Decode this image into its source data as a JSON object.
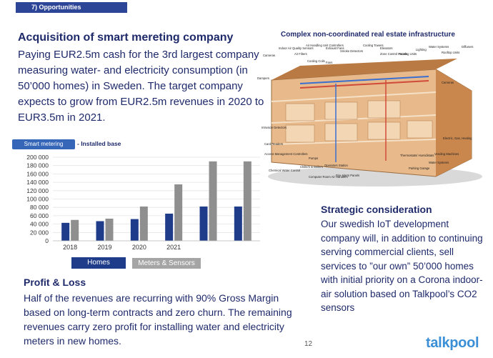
{
  "section": {
    "tab_label": "7) Opportunities"
  },
  "acquisition": {
    "title": "Acquisition of smart mereting company",
    "body": "Paying EUR2.5m cash for the 3rd largest company measuring water- and electricity consumption (in 50’000 homes) in Sweden. The target company expects to grow from EUR2.5m revenues in 2020 to EUR3.5m in 2021."
  },
  "diagram": {
    "title": "Complex non-coordinated real estate infrastructure",
    "labels": {
      "cameras": "Cameras",
      "indoor_air": "Indoor Air Quality Sensors",
      "air_filters": "Air Filters",
      "air_handling": "Air Handling Unit Controllers",
      "exhaust_fans": "Exhaust Fans",
      "smoke": "Smoke Detectors",
      "cooling_towers": "Cooling Towers",
      "elevators": "Elevators",
      "zone_panels": "Zone Control Panels",
      "lighting": "Lighting",
      "heating_units": "Heating Units",
      "water_systems": "Water Systems",
      "rooftop_units": "Rooftop Units",
      "diffusers": "Diffusers",
      "cooling_coils": "Cooling Coils",
      "fans": "Fans",
      "dampers": "Dampers",
      "intrusion": "Intrusion Detectors",
      "card_readers": "Card Readers",
      "access_mgmt": "Access Management Controllers",
      "chemical_water": "Chemical Water Control",
      "pumps": "Pumps",
      "chillers": "Chillers & Boilers",
      "operators": "Operators Station",
      "computer_room": "Computer Room Air Handlers",
      "fire_alarm": "Fire Alarm Panels",
      "thermostats": "Thermostats/ Humidistats",
      "parking": "Parking Garage",
      "vending": "Vending Machines",
      "electric_gas": "Electric, Gas, Heating",
      "water_systems_2": "Water Systems"
    }
  },
  "chart_header": {
    "tag": "Smart metering",
    "suffix": "- Installed base"
  },
  "chart_data": {
    "type": "bar",
    "categories": [
      "2018",
      "2019",
      "2020",
      "2021",
      "",
      ""
    ],
    "series": [
      {
        "name": "Homes",
        "values": [
          43000,
          47000,
          52000,
          65000,
          82000,
          82000
        ],
        "color": "#1f3c8a"
      },
      {
        "name": "Meters & Sensors",
        "values": [
          50000,
          53000,
          82000,
          135000,
          190000,
          190000
        ],
        "color": "#8f8f8f"
      }
    ],
    "ylim": [
      0,
      200000
    ],
    "yticks": [
      "0",
      "20 000",
      "40 000",
      "60 000",
      "80 000",
      "100 000",
      "120 000",
      "140 000",
      "160 000",
      "180 000",
      "200 000"
    ],
    "grid": true,
    "legend": [
      "Homes",
      "Meters & Sensors"
    ]
  },
  "strategic": {
    "title": "Strategic consideration",
    "body": "Our swedish IoT development company will, in addition to continuing serving commercial clients, sell services to ”our own” 50’000 homes with initial priority on a Corona indoor-air solution based on Talkpool’s CO2 sensors"
  },
  "profit_loss": {
    "title": "Profit & Loss",
    "body": "Half of the revenues are recurring with 90% Gross Margin based on long-term contracts and zero churn. The remaining revenues carry zero profit for installing water and electricity meters in new homes."
  },
  "footer": {
    "page_number": "12",
    "logo": "talkpool"
  }
}
